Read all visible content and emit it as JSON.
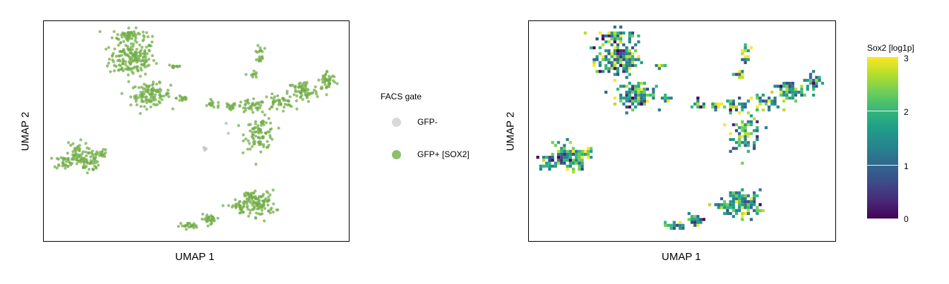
{
  "chart_data": [
    {
      "type": "scatter",
      "xlabel": "UMAP 1",
      "ylabel": "UMAP 2",
      "xlim": [
        0,
        100
      ],
      "ylim": [
        0,
        100
      ],
      "legend": {
        "title": "FACS gate",
        "placement": "right",
        "entries": [
          {
            "label": "GFP-",
            "color": "#d9d9d9"
          },
          {
            "label": "GFP+ [SOX2]",
            "color": "#8cc06a"
          }
        ]
      },
      "series": [
        {
          "name": "GFP-",
          "color": "#c8c8c8",
          "points": [
            [
              52.5,
              42.5
            ],
            [
              53.2,
              42.0
            ],
            [
              52.8,
              41.4
            ],
            [
              60.5,
              49.0
            ],
            [
              59.8,
              53.5
            ]
          ]
        },
        {
          "name": "GFP+ [SOX2]",
          "color": "#71ad47",
          "clusters": [
            {
              "cx": 29.0,
              "cy": 83.0,
              "rx": 7.5,
              "ry": 8.0,
              "n": 170
            },
            {
              "cx": 28.0,
              "cy": 93.5,
              "rx": 5.5,
              "ry": 3.0,
              "n": 60
            },
            {
              "cx": 35.0,
              "cy": 66.5,
              "rx": 6.5,
              "ry": 5.0,
              "n": 110
            },
            {
              "cx": 43.0,
              "cy": 79.5,
              "rx": 2.5,
              "ry": 1.2,
              "n": 12
            },
            {
              "cx": 45.5,
              "cy": 65.0,
              "rx": 2.0,
              "ry": 2.0,
              "n": 15
            },
            {
              "cx": 55.5,
              "cy": 62.0,
              "rx": 3.5,
              "ry": 1.5,
              "n": 15
            },
            {
              "cx": 61.0,
              "cy": 61.0,
              "rx": 2.0,
              "ry": 2.0,
              "n": 15
            },
            {
              "cx": 68.0,
              "cy": 61.0,
              "rx": 5.0,
              "ry": 3.0,
              "n": 40
            },
            {
              "cx": 71.0,
              "cy": 49.0,
              "rx": 5.0,
              "ry": 7.0,
              "n": 90
            },
            {
              "cx": 77.0,
              "cy": 63.0,
              "rx": 5.0,
              "ry": 3.5,
              "n": 45
            },
            {
              "cx": 85.0,
              "cy": 68.0,
              "rx": 5.0,
              "ry": 5.0,
              "n": 65
            },
            {
              "cx": 93.0,
              "cy": 73.0,
              "rx": 3.0,
              "ry": 4.5,
              "n": 45
            },
            {
              "cx": 68.5,
              "cy": 75.5,
              "rx": 1.5,
              "ry": 2.0,
              "n": 10
            },
            {
              "cx": 71.0,
              "cy": 83.0,
              "rx": 1.2,
              "ry": 2.0,
              "n": 10
            },
            {
              "cx": 71.0,
              "cy": 87.5,
              "rx": 1.2,
              "ry": 2.0,
              "n": 10
            },
            {
              "cx": 6.5,
              "cy": 36.0,
              "rx": 3.0,
              "ry": 3.0,
              "n": 30
            },
            {
              "cx": 11.0,
              "cy": 39.0,
              "rx": 3.5,
              "ry": 6.0,
              "n": 55
            },
            {
              "cx": 15.0,
              "cy": 36.0,
              "rx": 3.0,
              "ry": 4.5,
              "n": 40
            },
            {
              "cx": 18.5,
              "cy": 39.5,
              "rx": 2.5,
              "ry": 2.0,
              "n": 20
            },
            {
              "cx": 71.0,
              "cy": 17.0,
              "rx": 5.0,
              "ry": 6.0,
              "n": 95
            },
            {
              "cx": 64.0,
              "cy": 15.5,
              "rx": 3.5,
              "ry": 3.0,
              "n": 35
            },
            {
              "cx": 54.5,
              "cy": 10.0,
              "rx": 3.0,
              "ry": 2.0,
              "n": 30
            },
            {
              "cx": 47.5,
              "cy": 7.0,
              "rx": 3.0,
              "ry": 1.3,
              "n": 25
            },
            {
              "cx": 67.5,
              "cy": 20.5,
              "rx": 2.0,
              "ry": 2.0,
              "n": 15
            }
          ]
        }
      ]
    },
    {
      "type": "heatmap",
      "xlabel": "UMAP 1",
      "ylabel": "UMAP 2",
      "xlim": [
        0,
        100
      ],
      "ylim": [
        0,
        100
      ],
      "colorbar": {
        "title": "Sox2 [log1p]",
        "colormap": "viridis",
        "range": [
          0,
          3
        ],
        "ticks": [
          "0",
          "1",
          "2",
          "3"
        ]
      }
    }
  ]
}
